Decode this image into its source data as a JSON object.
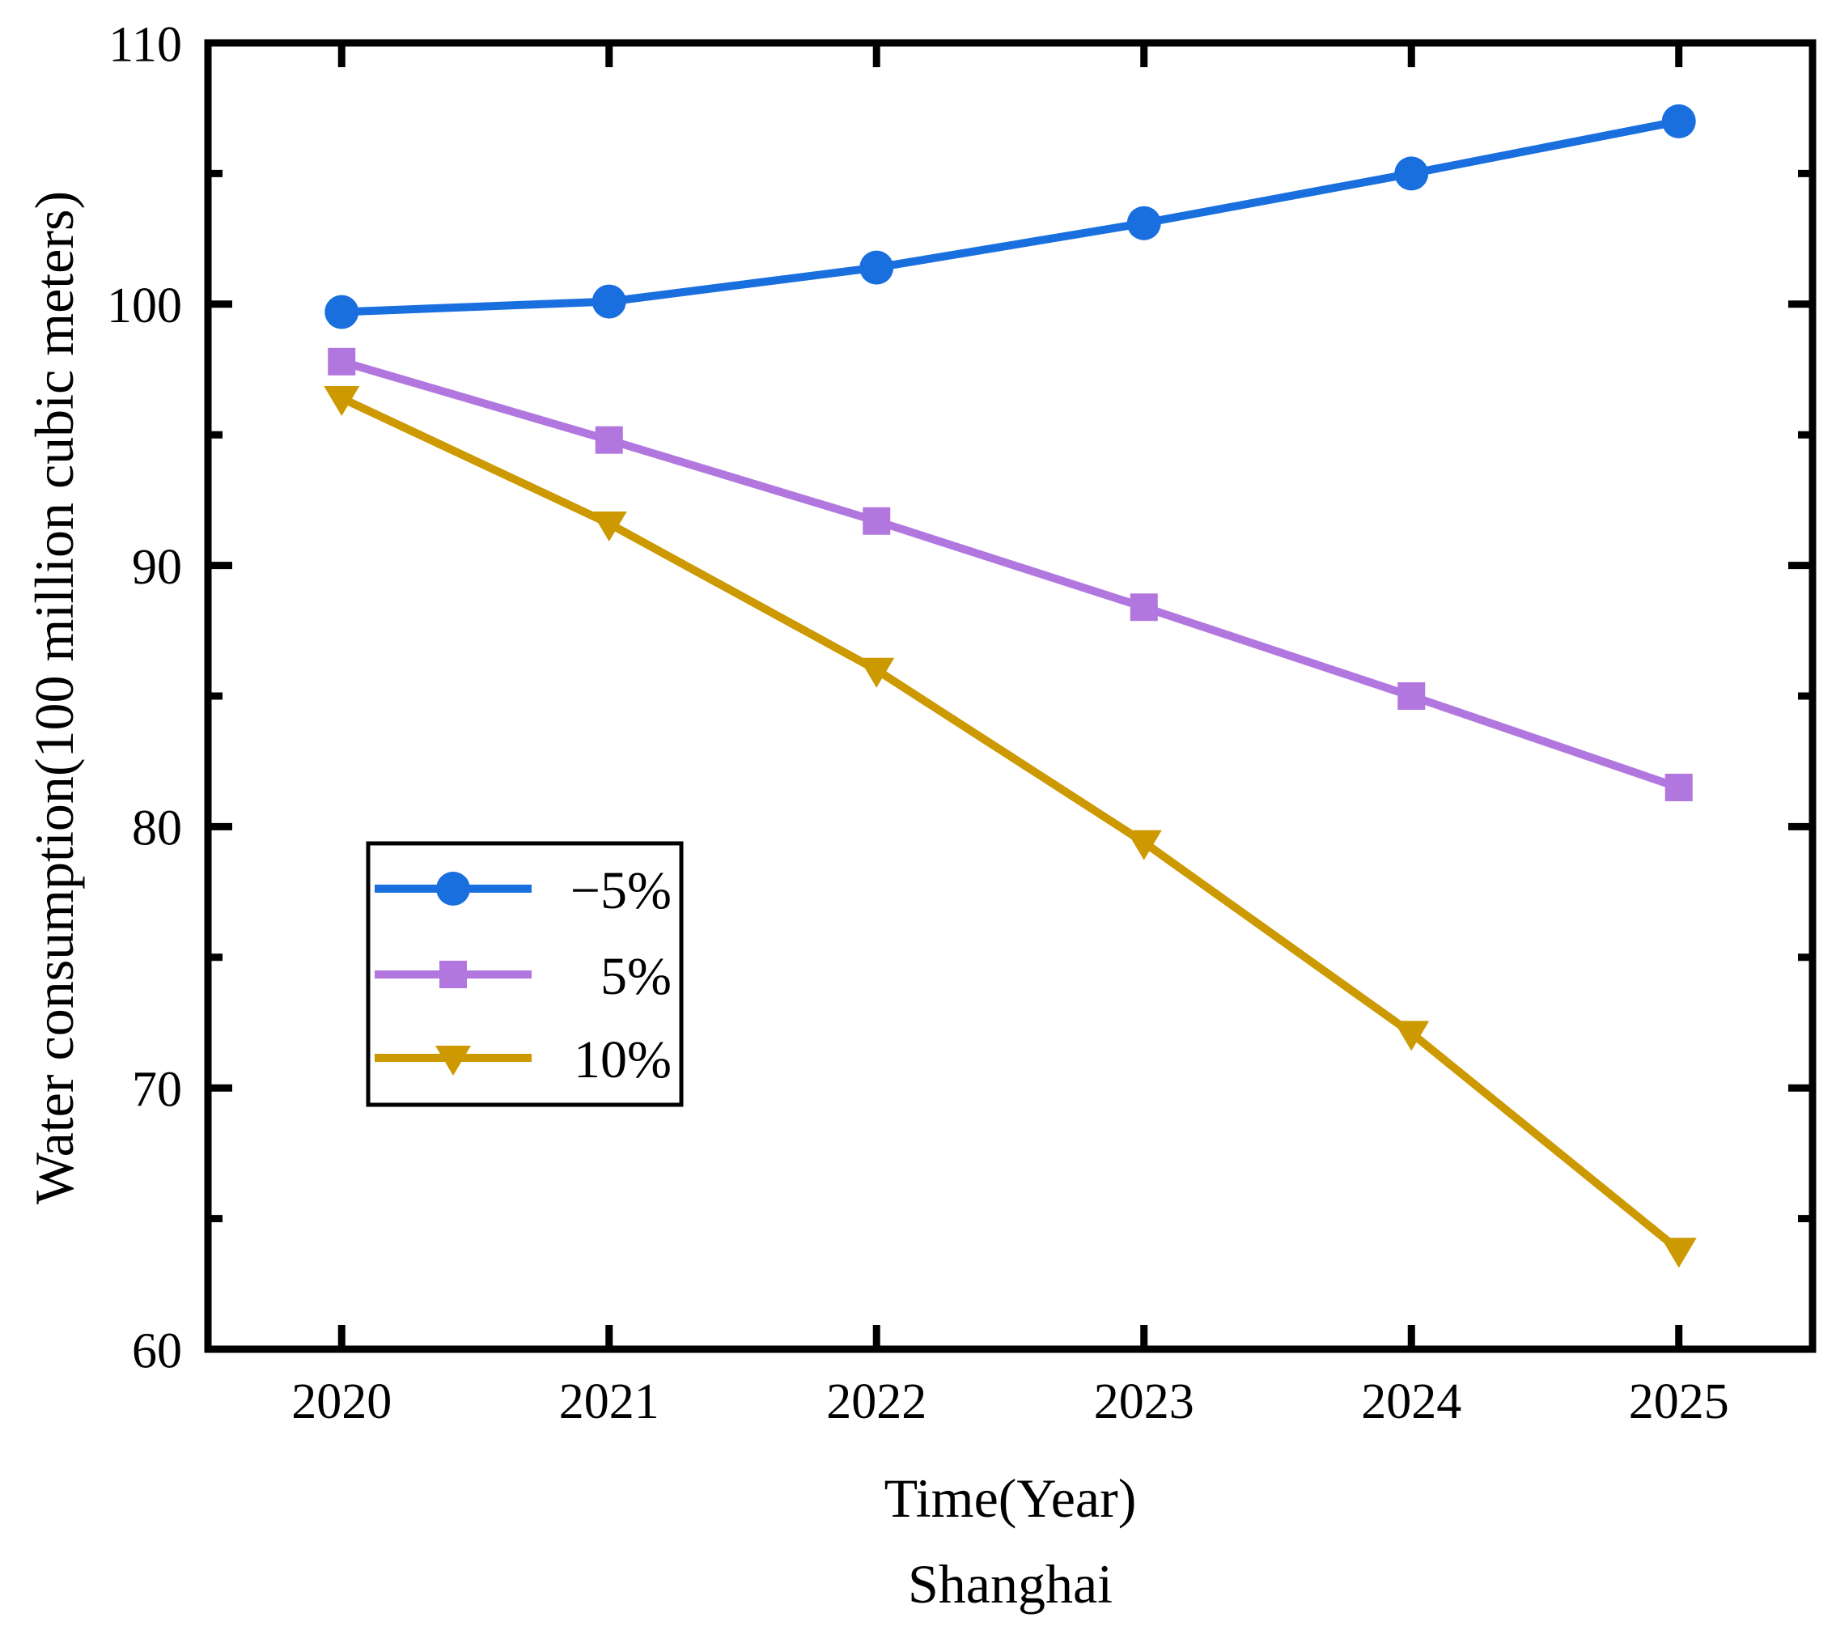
{
  "figure": {
    "background": "#ffffff",
    "axes_color": "#000000",
    "text_color": "#000000"
  },
  "chart_data": {
    "type": "line",
    "title": "",
    "xlabel": "Time(Year)",
    "xlabel_subtitle": "Shanghai",
    "ylabel": "Water consumption(100 million cubic meters)",
    "x": [
      2020,
      2021,
      2022,
      2023,
      2024,
      2025
    ],
    "x_tick_labels": [
      "2020",
      "2021",
      "2022",
      "2023",
      "2024",
      "2025"
    ],
    "xlim": [
      2019.5,
      2025.5
    ],
    "ylim": [
      60,
      110
    ],
    "y_major_ticks": [
      60,
      70,
      80,
      90,
      100,
      110
    ],
    "y_minor_ticks": [
      65,
      75,
      85,
      95,
      105
    ],
    "grid": false,
    "legend": {
      "position": "inside lower-left",
      "border_color": "#000000",
      "entries": [
        "−5%",
        "5%",
        "10%"
      ]
    },
    "series": [
      {
        "name": "−5%",
        "marker": "circle",
        "color": "#1A6FDF",
        "values": [
          99.7,
          100.1,
          101.4,
          103.1,
          105.0,
          107.0
        ]
      },
      {
        "name": "5%",
        "marker": "square",
        "color": "#B177DE",
        "values": [
          97.8,
          94.8,
          91.7,
          88.4,
          85.0,
          81.5
        ]
      },
      {
        "name": "10%",
        "marker": "triangle-down",
        "color": "#CC9900",
        "values": [
          96.4,
          91.6,
          86.0,
          79.4,
          72.1,
          63.8
        ]
      }
    ]
  }
}
